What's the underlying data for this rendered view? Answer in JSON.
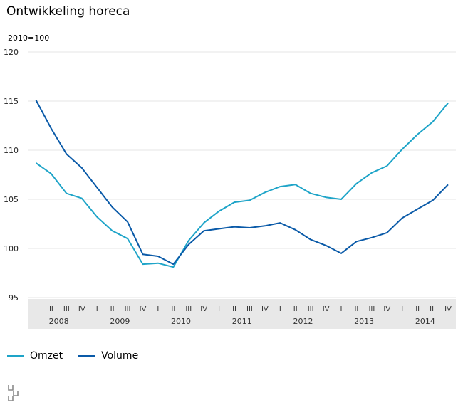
{
  "title": "Ontwikkeling horeca",
  "unit_label": "2010=100",
  "colors": {
    "omzet": "#1ea4c8",
    "volume": "#0a5aa8",
    "grid": "#e6e6e6",
    "axis_band": "#e8e8e8"
  },
  "logo": {
    "name": "cbs-logo-icon"
  },
  "chart_data": {
    "type": "line",
    "title": "Ontwikkeling horeca",
    "ylabel": "2010=100",
    "ylim": [
      95,
      120
    ],
    "yticks": [
      95,
      100,
      105,
      110,
      115,
      120
    ],
    "grid": true,
    "legend_position": "bottom-left",
    "quarters": [
      "I",
      "II",
      "III",
      "IV",
      "I",
      "II",
      "III",
      "IV",
      "I",
      "II",
      "III",
      "IV",
      "I",
      "II",
      "III",
      "IV",
      "I",
      "II",
      "III",
      "IV",
      "I",
      "II",
      "III",
      "IV",
      "I",
      "II",
      "III",
      "IV"
    ],
    "years": [
      "2008",
      "2009",
      "2010",
      "2011",
      "2012",
      "2013",
      "2014"
    ],
    "series": [
      {
        "name": "Omzet",
        "color": "#1ea4c8",
        "values": [
          108.7,
          107.6,
          105.6,
          105.1,
          103.2,
          101.8,
          101.0,
          98.4,
          98.5,
          98.1,
          100.8,
          102.6,
          103.8,
          104.7,
          104.9,
          105.7,
          106.3,
          106.5,
          105.6,
          105.2,
          105.0,
          106.6,
          107.7,
          108.4,
          110.1,
          111.6,
          112.9,
          114.8
        ]
      },
      {
        "name": "Volume",
        "color": "#0a5aa8",
        "values": [
          115.1,
          112.2,
          109.6,
          108.2,
          106.2,
          104.2,
          102.7,
          99.4,
          99.2,
          98.4,
          100.4,
          101.8,
          102.0,
          102.2,
          102.1,
          102.3,
          102.6,
          101.9,
          100.9,
          100.3,
          99.5,
          100.7,
          101.1,
          101.6,
          103.1,
          104.0,
          104.9,
          106.5
        ]
      }
    ]
  }
}
